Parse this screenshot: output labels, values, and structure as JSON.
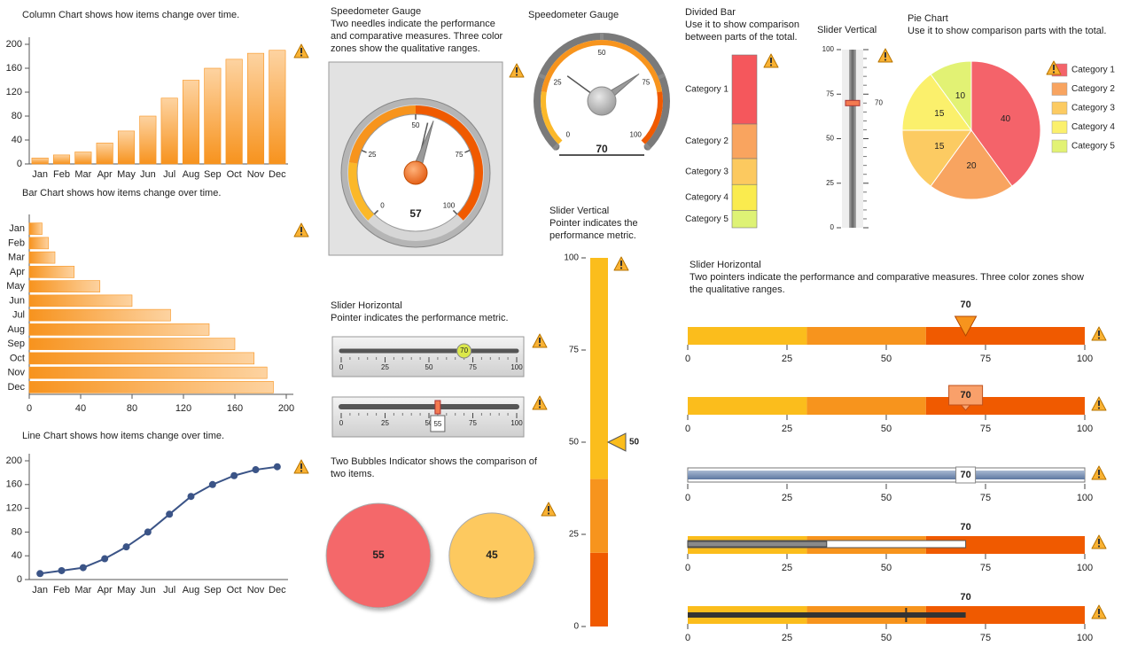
{
  "chart_data": [
    {
      "type": "column",
      "title": "Column Chart shows how items change over time.",
      "categories": [
        "Jan",
        "Feb",
        "Mar",
        "Apr",
        "May",
        "Jun",
        "Jul",
        "Aug",
        "Sep",
        "Oct",
        "Nov",
        "Dec"
      ],
      "values": [
        10,
        15,
        20,
        35,
        55,
        80,
        110,
        140,
        160,
        175,
        185,
        190
      ],
      "color": "#f7931e",
      "ylim": [
        0,
        200
      ],
      "yticks": [
        0,
        40,
        80,
        120,
        160,
        200
      ]
    },
    {
      "type": "bar",
      "title": "Bar Chart shows how items change over time.",
      "categories": [
        "Jan",
        "Feb",
        "Mar",
        "Apr",
        "May",
        "Jun",
        "Jul",
        "Aug",
        "Sep",
        "Oct",
        "Nov",
        "Dec"
      ],
      "values": [
        10,
        15,
        20,
        35,
        55,
        80,
        110,
        140,
        160,
        175,
        185,
        190
      ],
      "color": "#f7931e",
      "xlim": [
        0,
        200
      ],
      "xticks": [
        0,
        40,
        80,
        120,
        160,
        200
      ]
    },
    {
      "type": "line",
      "title": "Line Chart shows how items change over time.",
      "categories": [
        "Jan",
        "Feb",
        "Mar",
        "Apr",
        "May",
        "Jun",
        "Jul",
        "Aug",
        "Sep",
        "Oct",
        "Nov",
        "Dec"
      ],
      "values": [
        10,
        15,
        20,
        35,
        55,
        80,
        110,
        140,
        160,
        175,
        185,
        190
      ],
      "color": "#3b5487",
      "ylim": [
        0,
        200
      ],
      "yticks": [
        0,
        40,
        80,
        120,
        160,
        200
      ]
    },
    {
      "type": "gauge",
      "title": "Speedometer Gauge",
      "subtitle": "Two needles indicate the performance and comparative measures. Three color zones show the qualitative ranges.",
      "value": 57,
      "target": 55,
      "lim": [
        0,
        100
      ],
      "ticks": [
        0,
        25,
        50,
        75,
        100
      ],
      "ranges": [
        0,
        20,
        50,
        100
      ],
      "range_colors": [
        "#fbb829",
        "#f7941d",
        "#f05a00"
      ]
    },
    {
      "type": "gauge",
      "title": "Speedometer Gauge",
      "value": 70,
      "target": 30,
      "lim": [
        0,
        100
      ],
      "ticks": [
        0,
        25,
        50,
        75,
        100
      ],
      "ranges": [
        0,
        20,
        80,
        100
      ],
      "range_colors": [
        "#fbb829",
        "#f7941d",
        "#f05a00"
      ]
    },
    {
      "type": "slider",
      "title": "Slider Horizontal",
      "subtitle": "Pointer indicates the performance metric.",
      "orientation": "horizontal",
      "lim": [
        0,
        100
      ],
      "ticks": [
        0,
        25,
        50,
        75,
        100
      ],
      "sliders": [
        {
          "value": 70
        },
        {
          "value": 55
        }
      ]
    },
    {
      "type": "bubbles",
      "title": "Two Bubbles Indicator shows the comparison of two items.",
      "values": [
        55,
        45
      ],
      "colors": [
        "#f4676a",
        "#fdc95e"
      ]
    },
    {
      "type": "slider",
      "title": "Slider Vertical",
      "subtitle": "Pointer indicates the performance metric.",
      "orientation": "vertical",
      "lim": [
        0,
        100
      ],
      "ticks": [
        0,
        25,
        50,
        75,
        100
      ],
      "ranges": [
        0,
        20,
        40,
        100
      ],
      "range_colors": [
        "#f05a00",
        "#f7941d",
        "#fbbd1c"
      ],
      "sliders": [
        {
          "value": 50
        }
      ]
    },
    {
      "type": "divided-bar",
      "title": "Divided Bar",
      "subtitle": "Use it to show comparison between parts of the total.",
      "categories": [
        "Category 1",
        "Category 2",
        "Category 3",
        "Category 4",
        "Category 5"
      ],
      "values": [
        40,
        20,
        15,
        15,
        10
      ],
      "colors": [
        "#f5575c",
        "#f9a45f",
        "#fcc95f",
        "#faeb4e",
        "#def275"
      ]
    },
    {
      "type": "slider",
      "title": "Slider Vertical",
      "orientation": "vertical",
      "lim": [
        0,
        100
      ],
      "ticks": [
        0,
        25,
        50,
        75,
        100
      ],
      "sliders": [
        {
          "value": 70
        }
      ]
    },
    {
      "type": "pie",
      "title": "Pie Chart",
      "subtitle": "Use it to show comparison parts with the total.",
      "categories": [
        "Category 1",
        "Category 2",
        "Category 3",
        "Category 4",
        "Category 5"
      ],
      "values": [
        40,
        20,
        15,
        15,
        10
      ],
      "colors": [
        "#f4636a",
        "#f8a460",
        "#fccb62",
        "#fbf06c",
        "#e2f274"
      ]
    },
    {
      "type": "slider",
      "title": "Slider Horizontal",
      "subtitle": "Two pointers indicate the performance and comparative measures. Three color zones show the qualitative ranges.",
      "orientation": "horizontal",
      "lim": [
        0,
        100
      ],
      "ticks": [
        0,
        25,
        50,
        75,
        100
      ],
      "ranges": [
        0,
        30,
        60,
        100
      ],
      "range_colors": [
        "#fbbd1c",
        "#f7941d",
        "#f05a00"
      ],
      "sliders": [
        {
          "value": 70,
          "style": "triangle"
        },
        {
          "value": 70,
          "style": "callout"
        },
        {
          "value": 70,
          "style": "box"
        },
        {
          "value": 70,
          "target": 35,
          "style": "bar"
        },
        {
          "value": 70,
          "target": 55,
          "style": "bullet"
        }
      ]
    }
  ]
}
